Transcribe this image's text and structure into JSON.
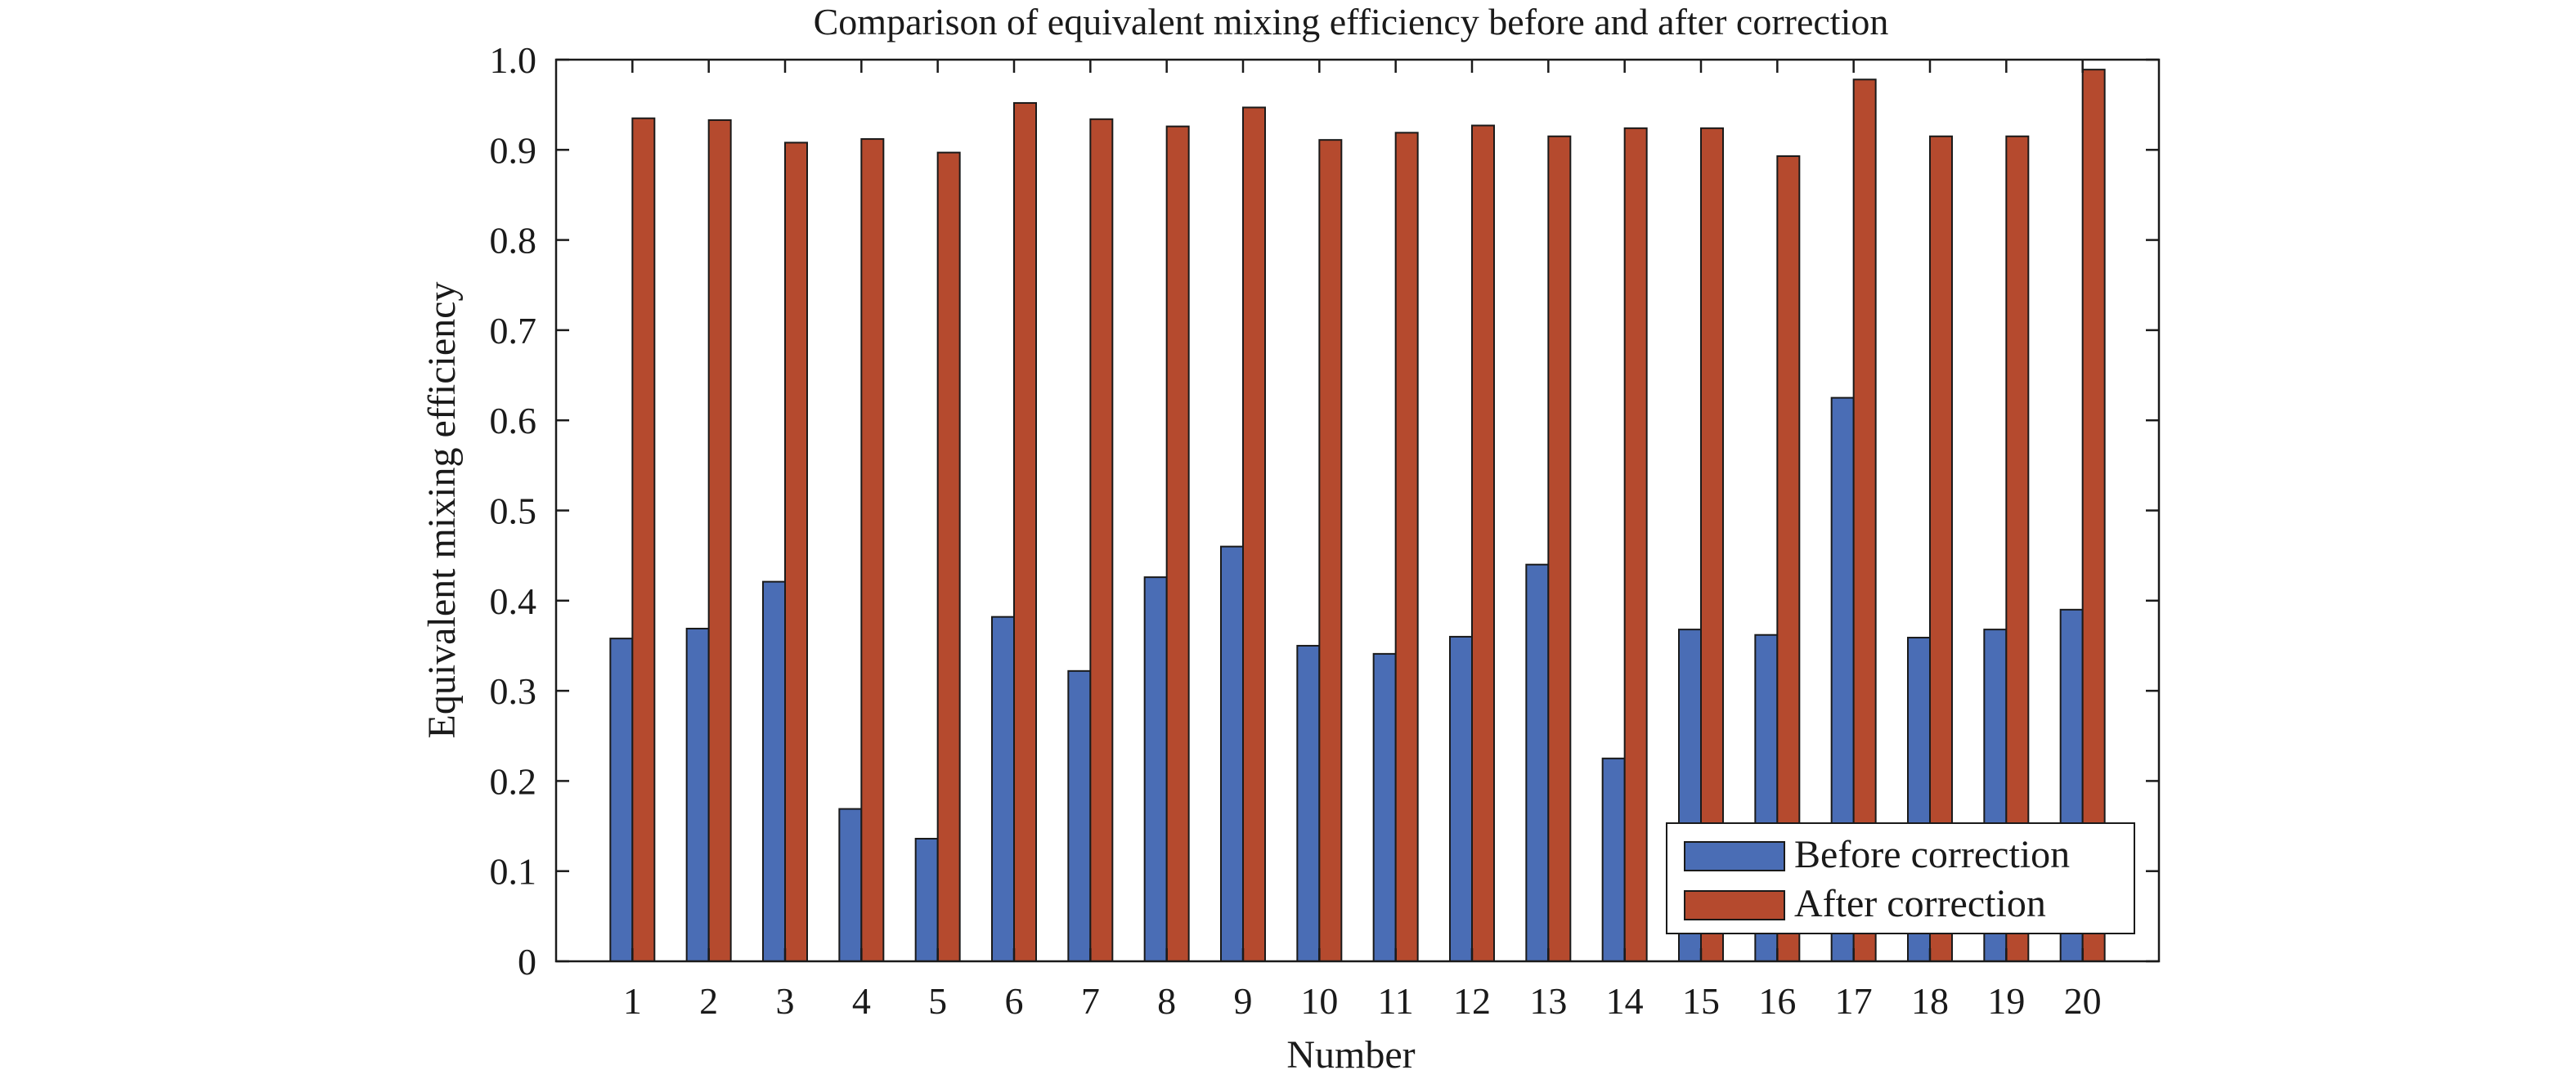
{
  "chart_data": {
    "type": "bar",
    "title": "Comparison of equivalent mixing efficiency before and after correction",
    "xlabel": "Number",
    "ylabel": "Equivalent mixing efficiency",
    "categories": [
      "1",
      "2",
      "3",
      "4",
      "5",
      "6",
      "7",
      "8",
      "9",
      "10",
      "11",
      "12",
      "13",
      "14",
      "15",
      "16",
      "17",
      "18",
      "19",
      "20"
    ],
    "ylim": [
      0,
      1.0
    ],
    "yticks": [
      "0",
      "0.1",
      "0.2",
      "0.3",
      "0.4",
      "0.5",
      "0.6",
      "0.7",
      "0.8",
      "0.9",
      "1.0"
    ],
    "series": [
      {
        "name": "Before correction",
        "color": "#4a6db5",
        "values": [
          0.358,
          0.369,
          0.421,
          0.169,
          0.136,
          0.382,
          0.322,
          0.426,
          0.46,
          0.35,
          0.341,
          0.36,
          0.44,
          0.225,
          0.368,
          0.362,
          0.625,
          0.359,
          0.368,
          0.39
        ]
      },
      {
        "name": "After correction",
        "color": "#b54a2e",
        "values": [
          0.935,
          0.933,
          0.908,
          0.912,
          0.897,
          0.952,
          0.934,
          0.926,
          0.947,
          0.911,
          0.919,
          0.927,
          0.915,
          0.924,
          0.924,
          0.893,
          0.978,
          0.915,
          0.915,
          0.989
        ]
      }
    ],
    "grid": false,
    "legend_position": "bottom-right"
  }
}
